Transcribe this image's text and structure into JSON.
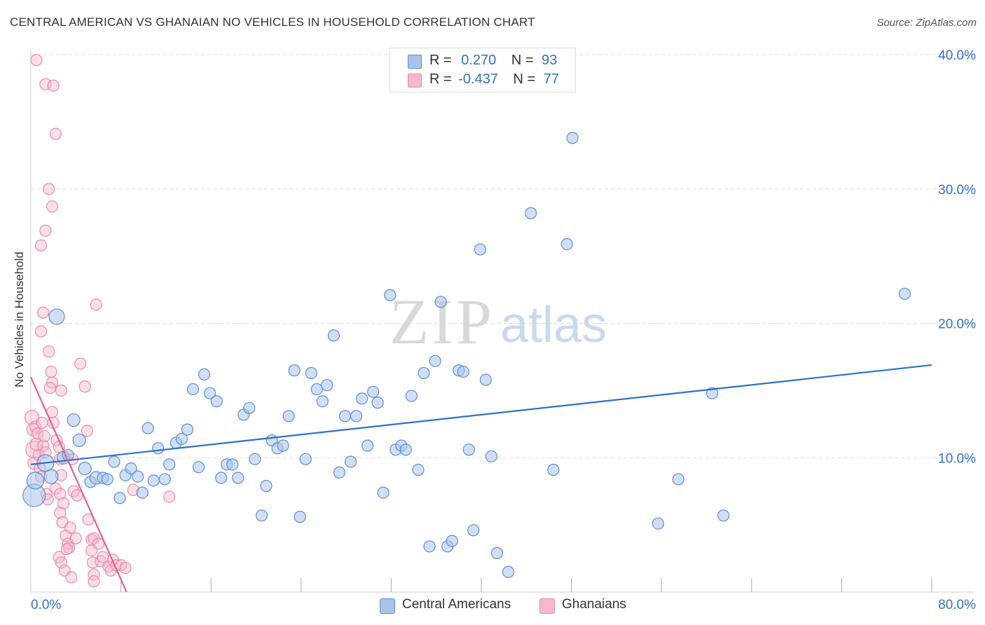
{
  "title": "CENTRAL AMERICAN VS GHANAIAN NO VEHICLES IN HOUSEHOLD CORRELATION CHART",
  "source": "Source: ZipAtlas.com",
  "watermark": {
    "zip": "ZIP",
    "atlas": "atlas"
  },
  "colors": {
    "blue": "#3370cc",
    "blue_fill": "#a9c4ea",
    "blue_stroke": "#5b8fd6",
    "pink": "#e2628f",
    "pink_fill": "#f5b8cc",
    "pink_stroke": "#ec8aab",
    "grid": "#dddddd",
    "axis_text": "#3370cc"
  },
  "legend": {
    "row1": {
      "r_label": "R =",
      "r_value": "0.270",
      "n_label": "N =",
      "n_value": "93"
    },
    "row2": {
      "r_label": "R =",
      "r_value": "-0.437",
      "n_label": "N =",
      "n_value": "77"
    }
  },
  "bottom_legend": {
    "series1": "Central Americans",
    "series2": "Ghanaians"
  },
  "chart_data": {
    "type": "scatter",
    "title": "CENTRAL AMERICAN VS GHANAIAN NO VEHICLES IN HOUSEHOLD CORRELATION CHART",
    "xlabel": "",
    "ylabel": "No Vehicles in Household",
    "xlim": [
      0,
      80
    ],
    "ylim": [
      0,
      40
    ],
    "x_tick_labels": [
      "0.0%",
      "80.0%"
    ],
    "y_tick_labels": [
      "10.0%",
      "20.0%",
      "30.0%",
      "40.0%"
    ],
    "y_ticks": [
      10,
      20,
      30,
      40
    ],
    "x_minor_ticks": [
      8,
      16,
      24,
      32,
      40,
      48,
      56,
      64,
      72,
      80
    ],
    "series": [
      {
        "name": "Central Americans",
        "r": 0.27,
        "n": 93,
        "trend": {
          "x": [
            0,
            80
          ],
          "y": [
            9.5,
            16.9
          ]
        },
        "points": [
          [
            0.3,
            7.2,
            16
          ],
          [
            0.4,
            8.3,
            12
          ],
          [
            1.3,
            9.6,
            12
          ],
          [
            1.8,
            8.6,
            10
          ],
          [
            2.3,
            20.5,
            11
          ],
          [
            2.9,
            10.0,
            9
          ],
          [
            3.3,
            10.2,
            8
          ],
          [
            3.8,
            12.8,
            9
          ],
          [
            4.3,
            11.3,
            9
          ],
          [
            4.8,
            9.2,
            9
          ],
          [
            5.3,
            8.2,
            8
          ],
          [
            5.8,
            8.5,
            9
          ],
          [
            6.4,
            8.5,
            8
          ],
          [
            6.8,
            8.4,
            8
          ],
          [
            7.4,
            9.7,
            8
          ],
          [
            7.9,
            7.0,
            8
          ],
          [
            8.4,
            8.7,
            8
          ],
          [
            8.9,
            9.2,
            8
          ],
          [
            9.5,
            8.6,
            8
          ],
          [
            9.9,
            7.4,
            8
          ],
          [
            10.4,
            12.2,
            8
          ],
          [
            10.9,
            8.3,
            8
          ],
          [
            11.3,
            10.7,
            8
          ],
          [
            11.9,
            8.4,
            8
          ],
          [
            12.3,
            9.5,
            8
          ],
          [
            12.9,
            11.1,
            8
          ],
          [
            13.4,
            11.4,
            8
          ],
          [
            13.9,
            12.1,
            8
          ],
          [
            14.4,
            15.1,
            8
          ],
          [
            14.9,
            9.3,
            8
          ],
          [
            15.4,
            16.2,
            8
          ],
          [
            15.9,
            14.8,
            8
          ],
          [
            16.5,
            14.2,
            8
          ],
          [
            16.9,
            8.5,
            8
          ],
          [
            17.4,
            9.5,
            8
          ],
          [
            17.9,
            9.5,
            8
          ],
          [
            18.4,
            8.5,
            8
          ],
          [
            18.9,
            13.2,
            8
          ],
          [
            19.4,
            13.7,
            8
          ],
          [
            19.9,
            9.9,
            8
          ],
          [
            20.5,
            5.7,
            8
          ],
          [
            20.9,
            7.9,
            8
          ],
          [
            21.4,
            11.3,
            8
          ],
          [
            21.9,
            10.7,
            8
          ],
          [
            22.4,
            10.9,
            8
          ],
          [
            22.9,
            13.1,
            8
          ],
          [
            23.4,
            16.5,
            8
          ],
          [
            23.9,
            5.6,
            8
          ],
          [
            24.4,
            9.9,
            8
          ],
          [
            24.9,
            16.3,
            8
          ],
          [
            25.4,
            15.1,
            8
          ],
          [
            25.9,
            14.2,
            8
          ],
          [
            26.3,
            15.4,
            8
          ],
          [
            26.9,
            19.1,
            8
          ],
          [
            27.4,
            8.9,
            8
          ],
          [
            27.9,
            13.1,
            8
          ],
          [
            28.4,
            9.7,
            8
          ],
          [
            28.9,
            13.1,
            8
          ],
          [
            29.4,
            14.4,
            8
          ],
          [
            29.9,
            10.9,
            8
          ],
          [
            30.4,
            14.9,
            8
          ],
          [
            30.8,
            14.1,
            8
          ],
          [
            31.3,
            7.4,
            8
          ],
          [
            31.9,
            22.1,
            8
          ],
          [
            32.4,
            10.6,
            8
          ],
          [
            32.9,
            10.9,
            8
          ],
          [
            33.3,
            10.6,
            8
          ],
          [
            33.8,
            14.6,
            8
          ],
          [
            34.4,
            9.1,
            8
          ],
          [
            34.9,
            16.3,
            8
          ],
          [
            35.4,
            3.4,
            8
          ],
          [
            35.9,
            17.2,
            8
          ],
          [
            36.4,
            21.6,
            8
          ],
          [
            37.0,
            3.4,
            8
          ],
          [
            37.4,
            3.8,
            8
          ],
          [
            38.0,
            16.5,
            8
          ],
          [
            38.4,
            16.4,
            8
          ],
          [
            38.9,
            10.6,
            8
          ],
          [
            39.3,
            4.6,
            8
          ],
          [
            39.9,
            25.5,
            8
          ],
          [
            40.4,
            15.8,
            8
          ],
          [
            40.9,
            10.1,
            8
          ],
          [
            41.4,
            2.9,
            8
          ],
          [
            42.4,
            1.5,
            8
          ],
          [
            44.4,
            28.2,
            8
          ],
          [
            46.4,
            9.1,
            8
          ],
          [
            47.6,
            25.9,
            8
          ],
          [
            48.1,
            33.8,
            8
          ],
          [
            55.7,
            5.1,
            8
          ],
          [
            57.5,
            8.4,
            8
          ],
          [
            60.5,
            14.8,
            8
          ],
          [
            61.5,
            5.7,
            8
          ],
          [
            77.6,
            22.2,
            8
          ]
        ]
      },
      {
        "name": "Ghanaians",
        "r": -0.437,
        "n": 77,
        "trend": {
          "x": [
            0,
            8.5
          ],
          "y": [
            16.0,
            0.0
          ]
        },
        "points": [
          [
            0.1,
            13.0,
            10
          ],
          [
            0.2,
            12.1,
            9
          ],
          [
            0.3,
            10.6,
            12
          ],
          [
            0.3,
            9.6,
            9
          ],
          [
            0.4,
            12.3,
            8
          ],
          [
            0.5,
            11.0,
            9
          ],
          [
            0.6,
            11.8,
            8
          ],
          [
            0.7,
            10.2,
            8
          ],
          [
            0.8,
            9.2,
            8
          ],
          [
            0.9,
            8.6,
            8
          ],
          [
            1.0,
            12.6,
            8
          ],
          [
            1.1,
            10.9,
            8
          ],
          [
            1.2,
            11.6,
            8
          ],
          [
            1.3,
            10.4,
            8
          ],
          [
            1.4,
            7.3,
            8
          ],
          [
            1.5,
            6.9,
            8
          ],
          [
            0.5,
            39.6,
            8
          ],
          [
            1.3,
            37.8,
            8
          ],
          [
            2.0,
            37.7,
            8
          ],
          [
            2.2,
            34.1,
            8
          ],
          [
            1.6,
            30.0,
            8
          ],
          [
            1.9,
            28.7,
            8
          ],
          [
            1.3,
            26.9,
            8
          ],
          [
            0.9,
            25.8,
            8
          ],
          [
            1.1,
            20.8,
            8
          ],
          [
            0.9,
            19.4,
            8
          ],
          [
            1.6,
            17.9,
            8
          ],
          [
            1.8,
            16.4,
            8
          ],
          [
            1.9,
            15.6,
            8
          ],
          [
            1.7,
            15.2,
            8
          ],
          [
            2.7,
            15.0,
            8
          ],
          [
            1.9,
            13.4,
            8
          ],
          [
            2.0,
            12.6,
            8
          ],
          [
            2.3,
            11.3,
            8
          ],
          [
            2.5,
            10.8,
            8
          ],
          [
            2.6,
            9.9,
            8
          ],
          [
            2.7,
            8.7,
            8
          ],
          [
            2.2,
            7.7,
            8
          ],
          [
            2.6,
            7.3,
            8
          ],
          [
            2.9,
            6.6,
            8
          ],
          [
            2.6,
            5.9,
            8
          ],
          [
            2.8,
            5.2,
            8
          ],
          [
            3.1,
            4.2,
            8
          ],
          [
            3.3,
            3.6,
            8
          ],
          [
            2.5,
            2.6,
            8
          ],
          [
            2.7,
            2.2,
            8
          ],
          [
            3.0,
            1.6,
            8
          ],
          [
            3.6,
            1.1,
            8
          ],
          [
            3.4,
            3.3,
            8
          ],
          [
            3.5,
            4.8,
            8
          ],
          [
            3.7,
            9.9,
            8
          ],
          [
            3.8,
            7.5,
            8
          ],
          [
            4.1,
            7.2,
            8
          ],
          [
            4.4,
            17.0,
            8
          ],
          [
            4.8,
            15.3,
            8
          ],
          [
            5.0,
            12.0,
            8
          ],
          [
            5.1,
            5.4,
            8
          ],
          [
            5.4,
            3.9,
            8
          ],
          [
            5.4,
            3.1,
            8
          ],
          [
            5.5,
            2.2,
            8
          ],
          [
            5.6,
            1.3,
            8
          ],
          [
            5.6,
            0.8,
            8
          ],
          [
            5.8,
            21.4,
            8
          ],
          [
            6.2,
            2.3,
            8
          ],
          [
            6.4,
            2.6,
            8
          ],
          [
            6.9,
            1.9,
            8
          ],
          [
            7.1,
            1.6,
            8
          ],
          [
            3.2,
            3.2,
            8
          ],
          [
            4.0,
            4.0,
            8
          ],
          [
            5.6,
            4.0,
            8
          ],
          [
            7.3,
            2.4,
            8
          ],
          [
            7.6,
            2.0,
            8
          ],
          [
            8.0,
            2.0,
            8
          ],
          [
            8.4,
            1.8,
            8
          ],
          [
            6.0,
            3.6,
            8
          ],
          [
            9.1,
            7.6,
            8
          ],
          [
            12.3,
            7.1,
            8
          ]
        ]
      }
    ]
  }
}
